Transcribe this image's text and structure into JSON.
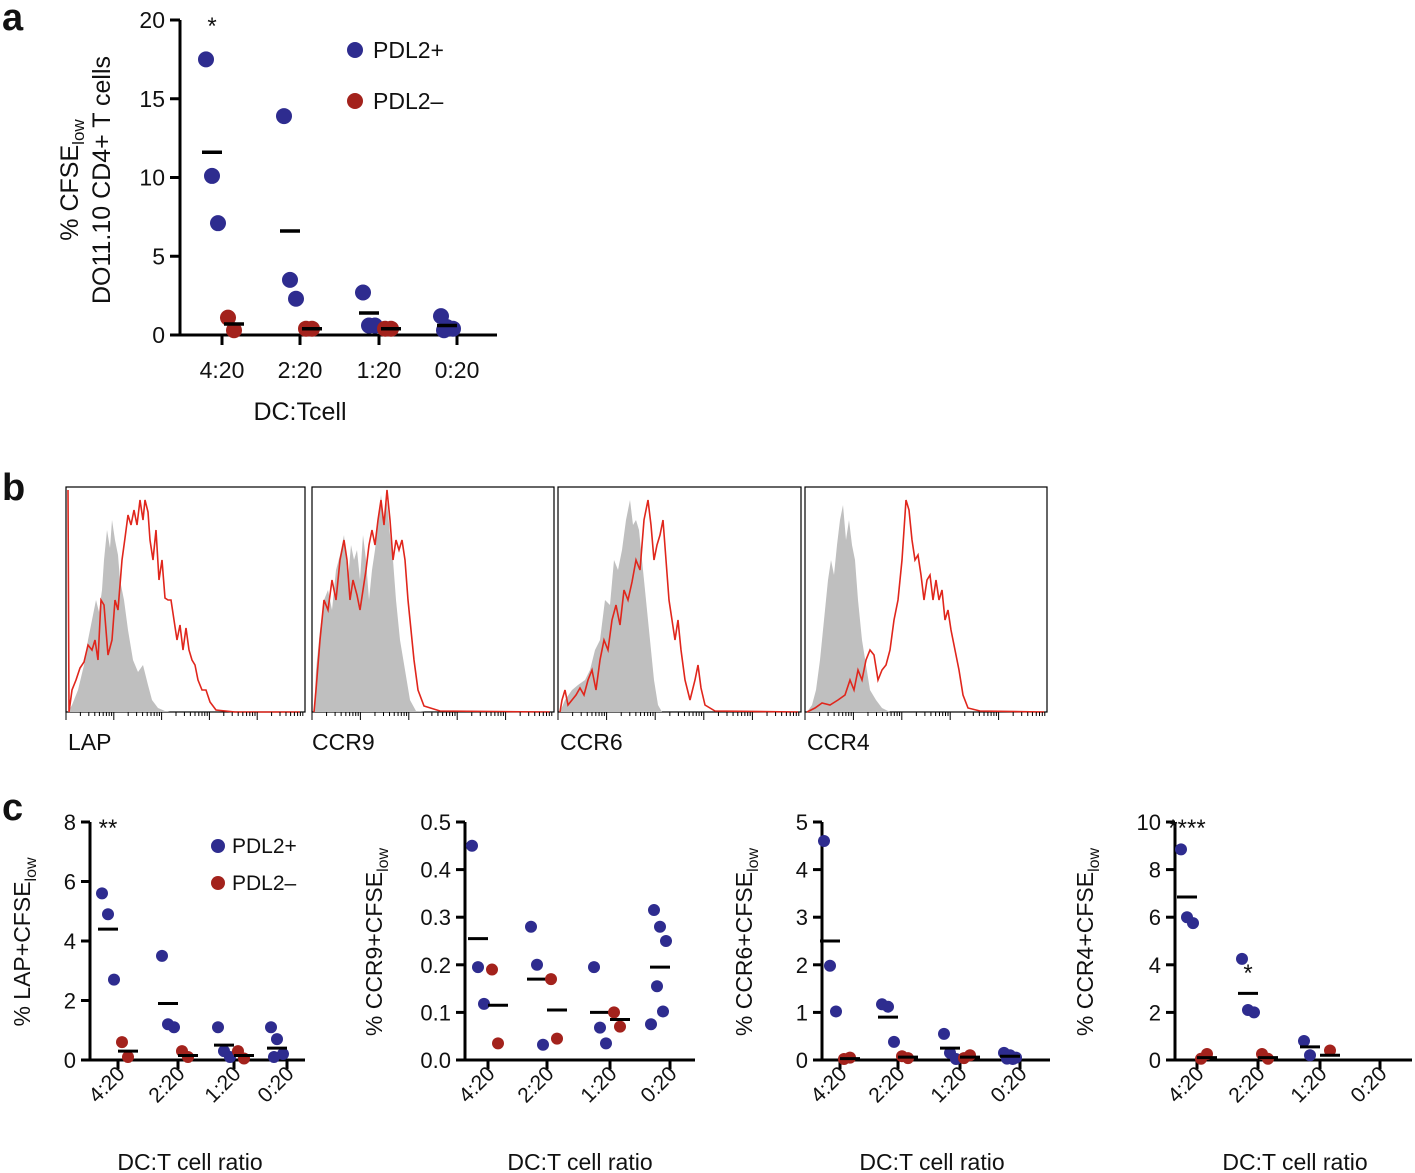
{
  "colors": {
    "pdl2_pos": "#2e2c8f",
    "pdl2_neg": "#a3221c",
    "axis": "#000000",
    "fill_gray": "#bfbfbf",
    "line_red": "#e0261c"
  },
  "panels": {
    "a": "a",
    "b": "b",
    "c": "c"
  },
  "chart_data": [
    {
      "id": "a",
      "type": "scatter",
      "ylabel_line1_pre": "% CFSE",
      "ylabel_line1_sub": "low",
      "ylabel_line2": "DO11.10 CD4+ T cells",
      "xlabel": "DC:Tcell",
      "categories": [
        "4:20",
        "2:20",
        "1:20",
        "0:20"
      ],
      "ylim": [
        0,
        20
      ],
      "yticks": [
        "0",
        "5",
        "10",
        "15",
        "20"
      ],
      "ytick_values": [
        0,
        5,
        10,
        15,
        20
      ],
      "legend": [
        "PDL2+",
        "PDL2–"
      ],
      "annotations": [
        {
          "text": "*",
          "category": 0
        }
      ],
      "series": [
        {
          "name": "PDL2+",
          "points": [
            [
              0,
              17.5
            ],
            [
              0,
              10.1
            ],
            [
              0,
              7.1
            ],
            [
              1,
              13.9
            ],
            [
              1,
              3.5
            ],
            [
              1,
              2.3
            ],
            [
              2,
              2.7
            ],
            [
              2,
              0.6
            ],
            [
              2,
              0.6
            ],
            [
              3,
              1.2
            ],
            [
              3,
              0.5
            ],
            [
              3,
              0.4
            ],
            [
              3,
              0.3
            ]
          ],
          "means": [
            11.6,
            6.6,
            1.4,
            0.6
          ]
        },
        {
          "name": "PDL2–",
          "points": [
            [
              0,
              1.1
            ],
            [
              0,
              0.3
            ],
            [
              1,
              0.4
            ],
            [
              1,
              0.4
            ],
            [
              2,
              0.4
            ],
            [
              2,
              0.4
            ]
          ],
          "means": [
            0.7,
            0.4,
            0.4
          ]
        }
      ]
    },
    {
      "id": "c1",
      "type": "scatter",
      "ylabel_pre": "% LAP+CFSE",
      "ylabel_sub": "low",
      "xlabel": "DC:T cell ratio",
      "categories": [
        "4:20",
        "2:20",
        "1:20",
        "0:20"
      ],
      "ylim": [
        0,
        8
      ],
      "yticks": [
        "0",
        "2",
        "4",
        "6",
        "8"
      ],
      "ytick_values": [
        0,
        2,
        4,
        6,
        8
      ],
      "legend": [
        "PDL2+",
        "PDL2–"
      ],
      "annotations": [
        {
          "text": "**",
          "category": 0
        }
      ],
      "series": [
        {
          "name": "PDL2+",
          "points": [
            [
              0,
              5.6
            ],
            [
              0,
              4.9
            ],
            [
              0,
              2.7
            ],
            [
              1,
              3.5
            ],
            [
              1,
              1.2
            ],
            [
              1,
              1.1
            ],
            [
              2,
              1.1
            ],
            [
              2,
              0.3
            ],
            [
              2,
              0.1
            ],
            [
              3,
              1.1
            ],
            [
              3,
              0.7
            ],
            [
              3,
              0.2
            ],
            [
              3,
              0.1
            ]
          ],
          "means": [
            4.4,
            1.9,
            0.5,
            0.4
          ]
        },
        {
          "name": "PDL2–",
          "points": [
            [
              0,
              0.6
            ],
            [
              0,
              0.1
            ],
            [
              1,
              0.3
            ],
            [
              1,
              0.1
            ],
            [
              2,
              0.3
            ],
            [
              2,
              0.05
            ]
          ],
          "means": [
            0.3,
            0.15,
            0.15
          ]
        }
      ]
    },
    {
      "id": "c2",
      "type": "scatter",
      "ylabel_pre": "% CCR9+CFSE",
      "ylabel_sub": "low",
      "xlabel": "DC:T cell ratio",
      "categories": [
        "4:20",
        "2:20",
        "1:20",
        "0:20"
      ],
      "ylim": [
        0,
        0.5
      ],
      "yticks": [
        "0.0",
        "0.1",
        "0.2",
        "0.3",
        "0.4",
        "0.5"
      ],
      "ytick_values": [
        0,
        0.1,
        0.2,
        0.3,
        0.4,
        0.5
      ],
      "series": [
        {
          "name": "PDL2+",
          "points": [
            [
              0,
              0.45
            ],
            [
              0,
              0.195
            ],
            [
              0,
              0.118
            ],
            [
              1,
              0.28
            ],
            [
              1,
              0.2
            ],
            [
              1,
              0.032
            ],
            [
              2,
              0.195
            ],
            [
              2,
              0.068
            ],
            [
              2,
              0.035
            ],
            [
              3,
              0.315
            ],
            [
              3,
              0.28
            ],
            [
              3,
              0.25
            ],
            [
              3,
              0.155
            ],
            [
              3,
              0.102
            ],
            [
              3,
              0.075
            ]
          ],
          "means": [
            0.255,
            0.17,
            0.1,
            0.195
          ]
        },
        {
          "name": "PDL2–",
          "points": [
            [
              0,
              0.19
            ],
            [
              0,
              0.035
            ],
            [
              1,
              0.17
            ],
            [
              1,
              0.045
            ],
            [
              2,
              0.1
            ],
            [
              2,
              0.07
            ]
          ],
          "means": [
            0.115,
            0.105,
            0.085
          ]
        }
      ]
    },
    {
      "id": "c3",
      "type": "scatter",
      "ylabel_pre": "% CCR6+CFSE",
      "ylabel_sub": "low",
      "xlabel": "DC:T cell ratio",
      "categories": [
        "4:20",
        "2:20",
        "1:20",
        "0:20"
      ],
      "ylim": [
        0,
        5
      ],
      "yticks": [
        "0",
        "1",
        "2",
        "3",
        "4",
        "5"
      ],
      "ytick_values": [
        0,
        1,
        2,
        3,
        4,
        5
      ],
      "series": [
        {
          "name": "PDL2+",
          "points": [
            [
              0,
              4.6
            ],
            [
              0,
              1.98
            ],
            [
              0,
              1.02
            ],
            [
              1,
              1.17
            ],
            [
              1,
              1.12
            ],
            [
              1,
              0.38
            ],
            [
              2,
              0.55
            ],
            [
              2,
              0.15
            ],
            [
              2,
              0.02
            ],
            [
              3,
              0.15
            ],
            [
              3,
              0.1
            ],
            [
              3,
              0.05
            ],
            [
              3,
              0.03
            ],
            [
              3,
              0.02
            ]
          ],
          "means": [
            2.5,
            0.9,
            0.25,
            0.08
          ]
        },
        {
          "name": "PDL2–",
          "points": [
            [
              0,
              0.02
            ],
            [
              0,
              0.05
            ],
            [
              1,
              0.08
            ],
            [
              1,
              0.04
            ],
            [
              2,
              0.04
            ],
            [
              2,
              0.1
            ]
          ],
          "means": [
            0.03,
            0.06,
            0.06
          ]
        }
      ]
    },
    {
      "id": "c4",
      "type": "scatter",
      "ylabel_pre": "% CCR4+CFSE",
      "ylabel_sub": "low",
      "xlabel": "DC:T cell ratio",
      "categories": [
        "4:20",
        "2:20",
        "1:20",
        "0:20"
      ],
      "ylim": [
        0,
        10
      ],
      "yticks": [
        "0",
        "2",
        "4",
        "6",
        "8",
        "10"
      ],
      "ytick_values": [
        0,
        2,
        4,
        6,
        8,
        10
      ],
      "annotations": [
        {
          "text": "****",
          "category": 0
        },
        {
          "text": "*",
          "category": 1
        }
      ],
      "series": [
        {
          "name": "PDL2+",
          "points": [
            [
              0,
              8.85
            ],
            [
              0,
              6.0
            ],
            [
              0,
              5.75
            ],
            [
              1,
              4.25
            ],
            [
              1,
              2.1
            ],
            [
              1,
              2.0
            ],
            [
              2,
              0.8
            ],
            [
              2,
              0.2
            ]
          ],
          "means": [
            6.85,
            2.8,
            0.55
          ]
        },
        {
          "name": "PDL2–",
          "points": [
            [
              0,
              0.05
            ],
            [
              0,
              0.25
            ],
            [
              1,
              0.25
            ],
            [
              1,
              0.05
            ],
            [
              2,
              0.4
            ]
          ],
          "means": [
            0.1,
            0.1,
            0.2
          ]
        }
      ]
    },
    {
      "id": "b",
      "type": "area",
      "xlabels": [
        "LAP",
        "CCR9",
        "CCR6",
        "CCR4"
      ],
      "note": "flow cytometry histograms: gray filled = control, red line = stained"
    }
  ]
}
